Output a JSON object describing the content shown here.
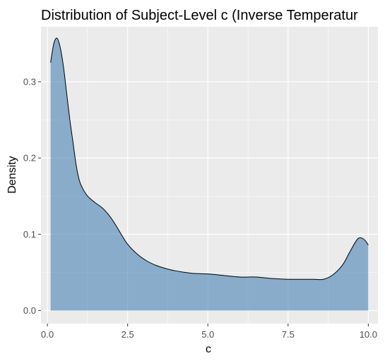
{
  "chart_data": {
    "type": "area",
    "title": "Distribution of Subject-Level c (Inverse Temperatur",
    "xlabel": "c",
    "ylabel": "Density",
    "xlim": [
      -0.2,
      10.3
    ],
    "ylim": [
      -0.017,
      0.372
    ],
    "x_ticks": [
      0,
      2.5,
      5,
      7.5,
      10
    ],
    "x_tick_labels": [
      "0.0",
      "2.5",
      "5.0",
      "7.5",
      "10.0"
    ],
    "y_ticks": [
      0,
      0.1,
      0.2,
      0.3
    ],
    "y_tick_labels": [
      "0.0",
      "0.1",
      "0.2",
      "0.3"
    ],
    "grid": true,
    "legend": "none",
    "colors": {
      "panel": "#EBEBEB",
      "grid_major": "#FFFFFF",
      "fill": "#4682B4",
      "fill_opacity": 0.6,
      "outline": "#000000"
    },
    "series": [
      {
        "x": [
          0.1,
          0.2,
          0.3,
          0.4,
          0.5,
          0.6,
          0.7,
          0.8,
          0.9,
          1.0,
          1.1,
          1.2,
          1.3,
          1.5,
          1.7,
          1.9,
          2.1,
          2.3,
          2.5,
          2.8,
          3.1,
          3.4,
          3.7,
          4.0,
          4.5,
          5.0,
          5.5,
          6.0,
          6.5,
          7.0,
          7.5,
          8.0,
          8.3,
          8.6,
          8.9,
          9.2,
          9.4,
          9.6,
          9.7,
          9.8,
          9.9,
          10.0
        ],
        "y": [
          0.325,
          0.35,
          0.357,
          0.345,
          0.32,
          0.285,
          0.25,
          0.22,
          0.19,
          0.17,
          0.16,
          0.153,
          0.148,
          0.141,
          0.135,
          0.126,
          0.114,
          0.1,
          0.087,
          0.074,
          0.065,
          0.059,
          0.055,
          0.052,
          0.049,
          0.048,
          0.046,
          0.044,
          0.044,
          0.042,
          0.041,
          0.041,
          0.041,
          0.041,
          0.047,
          0.06,
          0.075,
          0.09,
          0.095,
          0.095,
          0.092,
          0.086
        ]
      }
    ]
  }
}
